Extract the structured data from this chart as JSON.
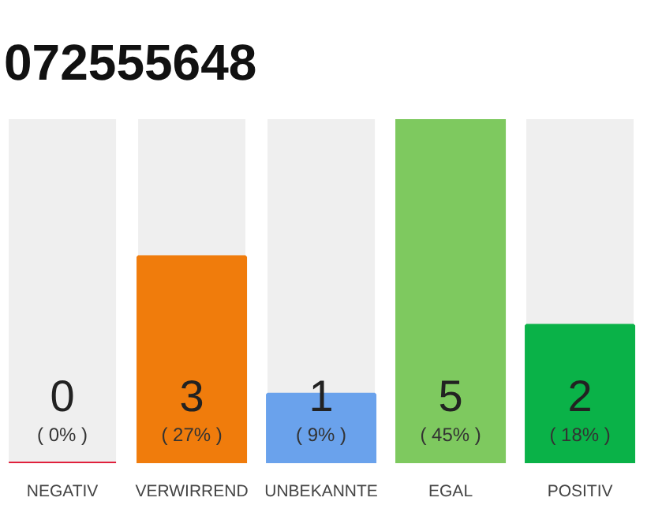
{
  "chart_data": {
    "type": "bar",
    "title": "072555648",
    "categories": [
      "NEGATIV",
      "VERWIRREND",
      "UNBEKANNTE",
      "EGAL",
      "POSITIV"
    ],
    "values": [
      0,
      3,
      1,
      5,
      2
    ],
    "colors": [
      "#e0203c",
      "#f07c0c",
      "#6aa2ec",
      "#7ec95f",
      "#0ab248"
    ],
    "data_labels": true,
    "annotations": [
      "( 0% )",
      "( 27% )",
      "( 9% )",
      "( 45% )",
      "( 18% )"
    ]
  }
}
